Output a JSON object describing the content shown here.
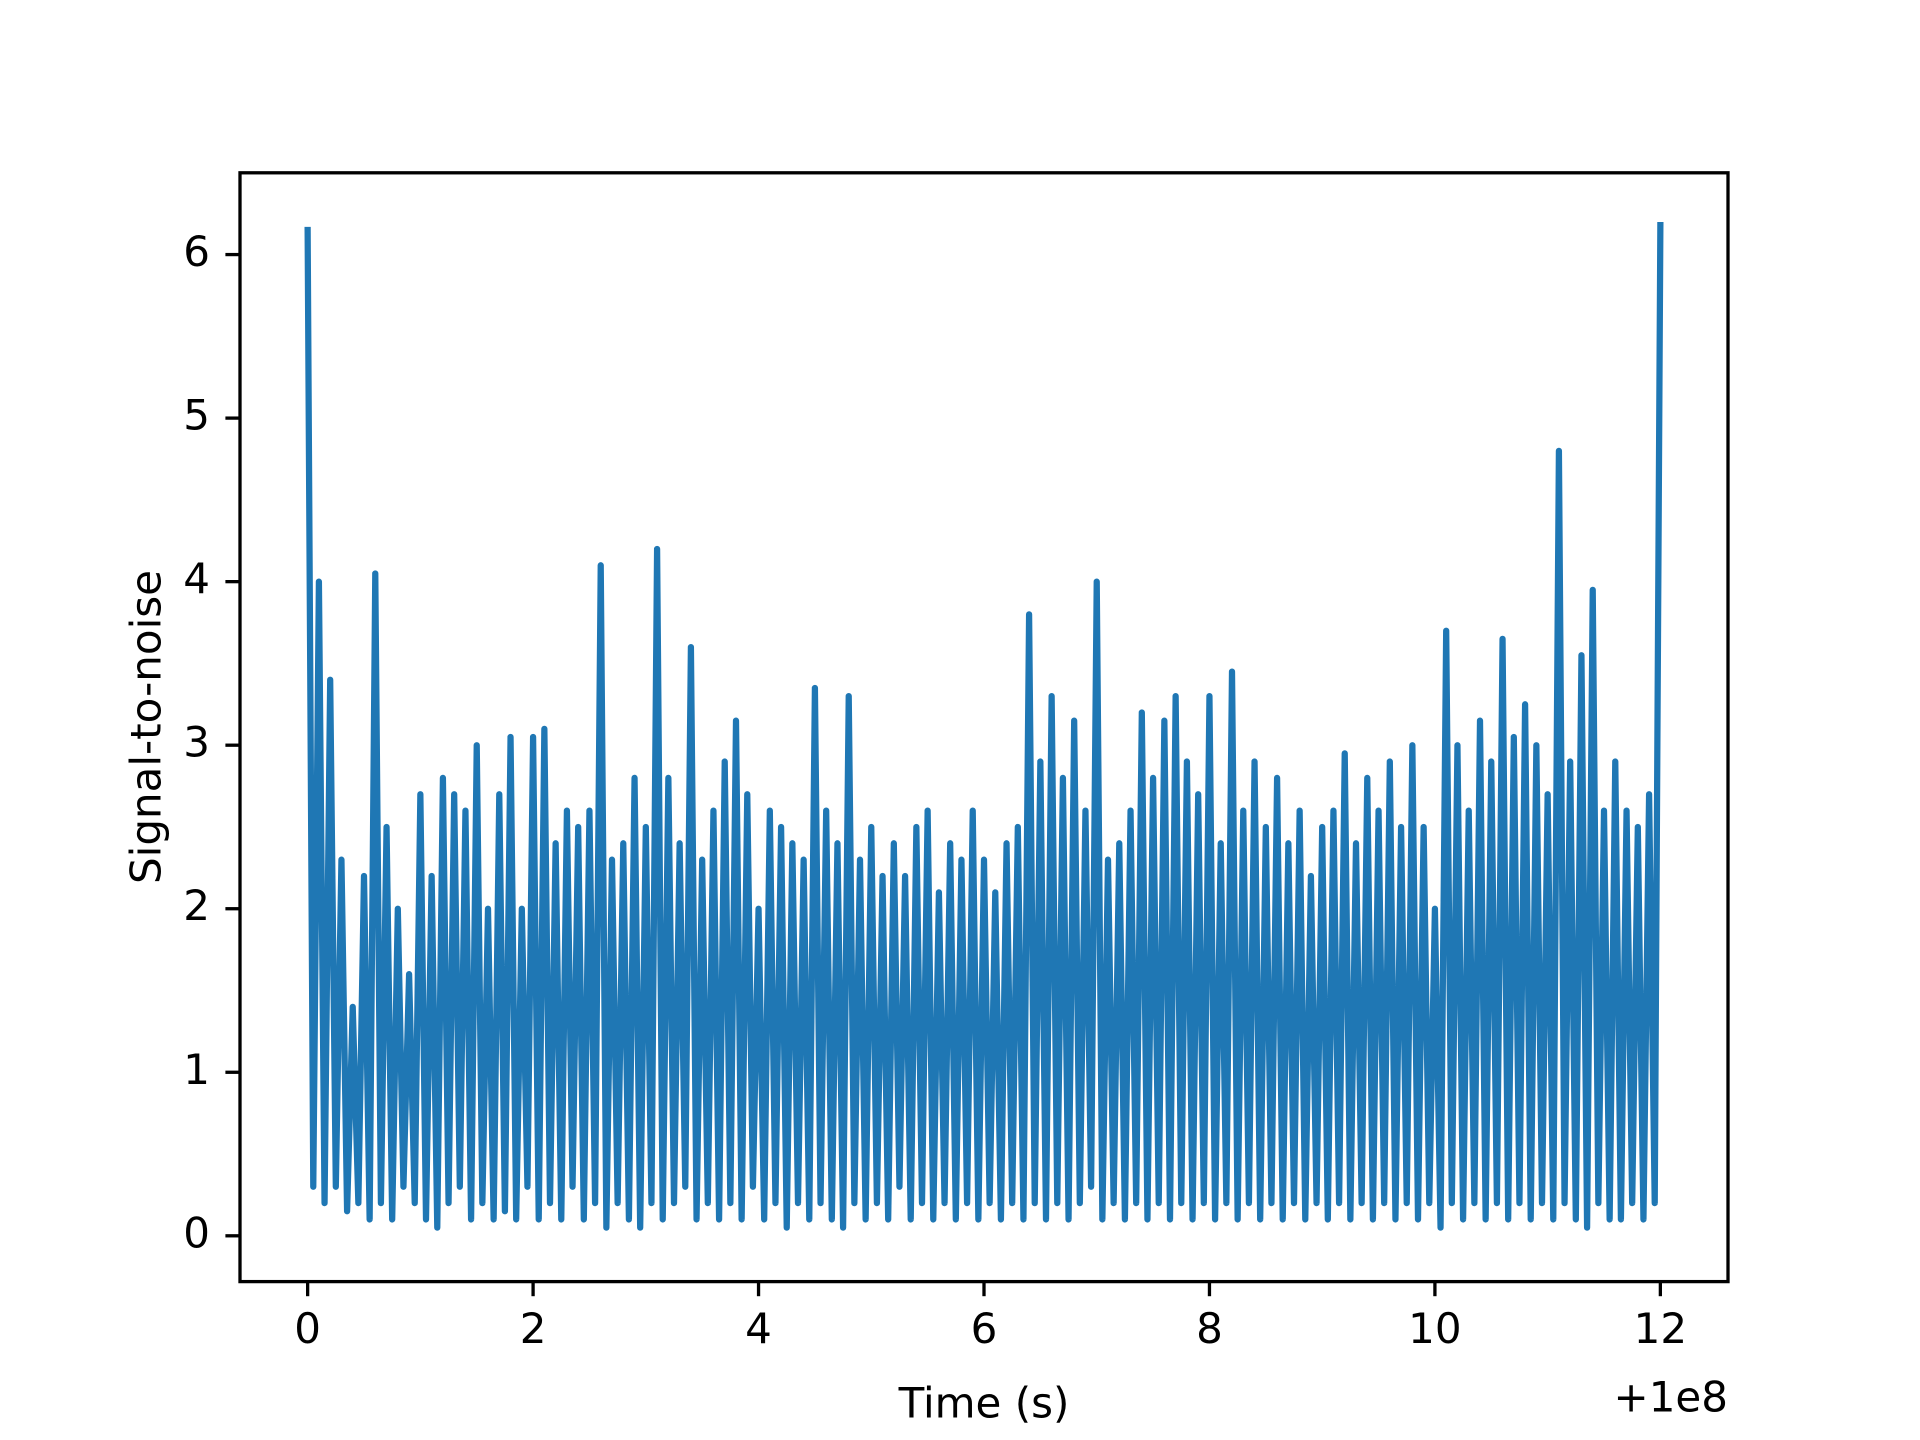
{
  "chart_data": {
    "type": "line",
    "xlabel": "Time (s)",
    "ylabel": "Signal-to-noise",
    "x_offset_text": "+1e8",
    "x": [
      0,
      0.05,
      0.1,
      0.15,
      0.2,
      0.25,
      0.3,
      0.35,
      0.4,
      0.45,
      0.5,
      0.55,
      0.6,
      0.65,
      0.7,
      0.75,
      0.8,
      0.85,
      0.9,
      0.95,
      1,
      1.05,
      1.1,
      1.15,
      1.2,
      1.25,
      1.3,
      1.35,
      1.4,
      1.45,
      1.5,
      1.55,
      1.6,
      1.65,
      1.7,
      1.75,
      1.8,
      1.85,
      1.9,
      1.95,
      2,
      2.05,
      2.1,
      2.15,
      2.2,
      2.25,
      2.3,
      2.35,
      2.4,
      2.45,
      2.5,
      2.55,
      2.6,
      2.65,
      2.7,
      2.75,
      2.8,
      2.85,
      2.9,
      2.95,
      3,
      3.05,
      3.1,
      3.15,
      3.2,
      3.25,
      3.3,
      3.35,
      3.4,
      3.45,
      3.5,
      3.55,
      3.6,
      3.65,
      3.7,
      3.75,
      3.8,
      3.85,
      3.9,
      3.95,
      4,
      4.05,
      4.1,
      4.15,
      4.2,
      4.25,
      4.3,
      4.35,
      4.4,
      4.45,
      4.5,
      4.55,
      4.6,
      4.65,
      4.7,
      4.75,
      4.8,
      4.85,
      4.9,
      4.95,
      5,
      5.05,
      5.1,
      5.15,
      5.2,
      5.25,
      5.3,
      5.35,
      5.4,
      5.45,
      5.5,
      5.55,
      5.6,
      5.65,
      5.7,
      5.75,
      5.8,
      5.85,
      5.9,
      5.95,
      6,
      6.05,
      6.1,
      6.15,
      6.2,
      6.25,
      6.3,
      6.35,
      6.4,
      6.45,
      6.5,
      6.55,
      6.6,
      6.65,
      6.7,
      6.75,
      6.8,
      6.85,
      6.9,
      6.95,
      7,
      7.05,
      7.1,
      7.15,
      7.2,
      7.25,
      7.3,
      7.35,
      7.4,
      7.45,
      7.5,
      7.55,
      7.6,
      7.65,
      7.7,
      7.75,
      7.8,
      7.85,
      7.9,
      7.95,
      8,
      8.05,
      8.1,
      8.15,
      8.2,
      8.25,
      8.3,
      8.35,
      8.4,
      8.45,
      8.5,
      8.55,
      8.6,
      8.65,
      8.7,
      8.75,
      8.8,
      8.85,
      8.9,
      8.95,
      9,
      9.05,
      9.1,
      9.15,
      9.2,
      9.25,
      9.3,
      9.35,
      9.4,
      9.45,
      9.5,
      9.55,
      9.6,
      9.65,
      9.7,
      9.75,
      9.8,
      9.85,
      9.9,
      9.95,
      10,
      10.05,
      10.1,
      10.15,
      10.2,
      10.25,
      10.3,
      10.35,
      10.4,
      10.45,
      10.5,
      10.55,
      10.6,
      10.65,
      10.7,
      10.75,
      10.8,
      10.85,
      10.9,
      10.95,
      11,
      11.05,
      11.1,
      11.15,
      11.2,
      11.25,
      11.3,
      11.35,
      11.4,
      11.45,
      11.5,
      11.55,
      11.6,
      11.65,
      11.7,
      11.75,
      11.8,
      11.85,
      11.9,
      11.95,
      12
    ],
    "series": [
      {
        "color": "#1f77b4",
        "values": [
          6.15,
          0.3,
          4.0,
          0.2,
          3.4,
          0.3,
          2.3,
          0.15,
          1.4,
          0.2,
          2.2,
          0.1,
          4.05,
          0.2,
          2.5,
          0.1,
          2.0,
          0.3,
          1.6,
          0.2,
          2.7,
          0.1,
          2.2,
          0.05,
          2.8,
          0.2,
          2.7,
          0.3,
          2.6,
          0.1,
          3.0,
          0.2,
          2.0,
          0.1,
          2.7,
          0.15,
          3.05,
          0.1,
          2.0,
          0.3,
          3.05,
          0.1,
          3.1,
          0.2,
          2.4,
          0.1,
          2.6,
          0.3,
          2.5,
          0.1,
          2.6,
          0.2,
          4.1,
          0.05,
          2.3,
          0.2,
          2.4,
          0.1,
          2.8,
          0.05,
          2.5,
          0.2,
          4.2,
          0.1,
          2.8,
          0.2,
          2.4,
          0.3,
          3.6,
          0.1,
          2.3,
          0.2,
          2.6,
          0.1,
          2.9,
          0.2,
          3.15,
          0.1,
          2.7,
          0.3,
          2.0,
          0.1,
          2.6,
          0.2,
          2.5,
          0.05,
          2.4,
          0.2,
          2.3,
          0.1,
          3.35,
          0.2,
          2.6,
          0.1,
          2.4,
          0.05,
          3.3,
          0.2,
          2.3,
          0.1,
          2.5,
          0.2,
          2.2,
          0.1,
          2.4,
          0.3,
          2.2,
          0.1,
          2.5,
          0.2,
          2.6,
          0.1,
          2.1,
          0.2,
          2.4,
          0.1,
          2.3,
          0.2,
          2.6,
          0.1,
          2.3,
          0.2,
          2.1,
          0.1,
          2.4,
          0.2,
          2.5,
          0.1,
          3.8,
          0.2,
          2.9,
          0.1,
          3.3,
          0.2,
          2.8,
          0.1,
          3.15,
          0.2,
          2.6,
          0.3,
          4.0,
          0.1,
          2.3,
          0.2,
          2.4,
          0.1,
          2.6,
          0.2,
          3.2,
          0.1,
          2.8,
          0.2,
          3.15,
          0.1,
          3.3,
          0.2,
          2.9,
          0.1,
          2.7,
          0.2,
          3.3,
          0.1,
          2.4,
          0.2,
          3.45,
          0.1,
          2.6,
          0.2,
          2.9,
          0.1,
          2.5,
          0.2,
          2.8,
          0.1,
          2.4,
          0.2,
          2.6,
          0.1,
          2.2,
          0.2,
          2.5,
          0.1,
          2.6,
          0.2,
          2.95,
          0.1,
          2.4,
          0.2,
          2.8,
          0.1,
          2.6,
          0.2,
          2.9,
          0.1,
          2.5,
          0.2,
          3.0,
          0.1,
          2.5,
          0.2,
          2.0,
          0.05,
          3.7,
          0.2,
          3.0,
          0.1,
          2.6,
          0.2,
          3.15,
          0.1,
          2.9,
          0.2,
          3.65,
          0.1,
          3.05,
          0.2,
          3.25,
          0.1,
          3.0,
          0.2,
          2.7,
          0.1,
          4.8,
          0.2,
          2.9,
          0.1,
          3.55,
          0.05,
          3.95,
          0.2,
          2.6,
          0.1,
          2.9,
          0.1,
          2.6,
          0.2,
          2.5,
          0.1,
          2.7,
          0.2,
          6.18
        ]
      }
    ],
    "xlim": [
      -0.6,
      12.6
    ],
    "ylim": [
      -0.28,
      6.5
    ],
    "xticks": [
      0,
      2,
      4,
      6,
      8,
      10,
      12
    ],
    "yticks": [
      0,
      1,
      2,
      3,
      4,
      5,
      6
    ]
  }
}
